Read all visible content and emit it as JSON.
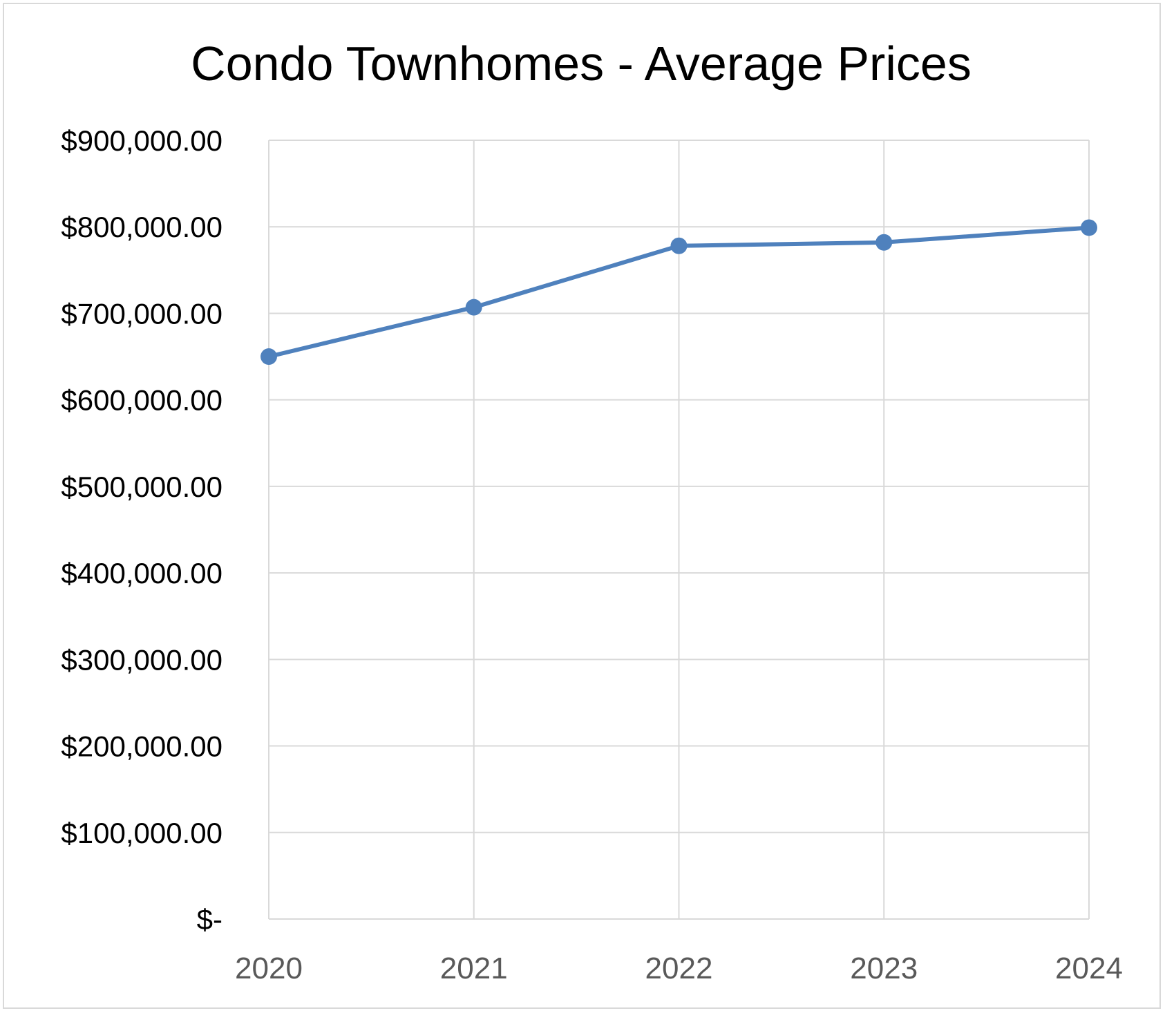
{
  "chart_data": {
    "type": "line",
    "title": "Condo Townhomes - Average Prices",
    "xlabel": "",
    "ylabel": "",
    "categories": [
      "2020",
      "2021",
      "2022",
      "2023",
      "2024"
    ],
    "series": [
      {
        "values": [
          650000,
          707000,
          778000,
          782000,
          799000
        ],
        "color": "#4f81bd"
      }
    ],
    "y_ticks": [
      0,
      100000,
      200000,
      300000,
      400000,
      500000,
      600000,
      700000,
      800000,
      900000
    ],
    "y_tick_labels": [
      "$-",
      "$100,000.00",
      "$200,000.00",
      "$300,000.00",
      "$400,000.00",
      "$500,000.00",
      "$600,000.00",
      "$700,000.00",
      "$800,000.00",
      "$900,000.00"
    ],
    "ylim": [
      0,
      900000
    ],
    "grid": true,
    "legend": "none",
    "gridline_color": "#d9d9d9",
    "text_color": "#000000",
    "x_tick_color": "#595959"
  }
}
